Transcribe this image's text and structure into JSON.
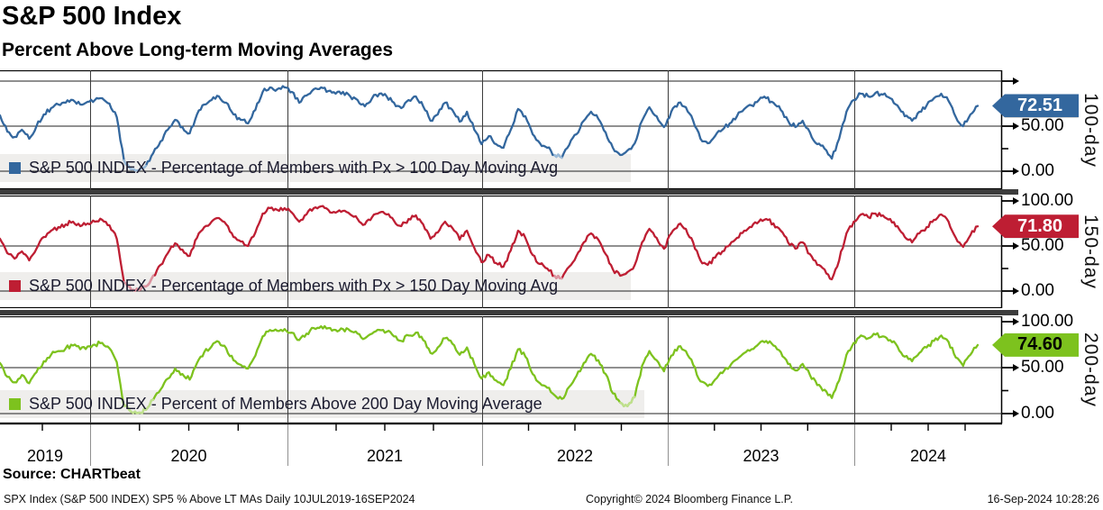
{
  "header": {
    "title": "S&P 500 Index",
    "subtitle": "Percent Above Long-term Moving Averages"
  },
  "source_label": "Source: CHARTbeat",
  "footer": {
    "left": "SPX Index (S&P 500 INDEX) SP5 % Above LT MAs  Daily 10JUL2019-16SEP2024",
    "center": "Copyright© 2024 Bloomberg Finance L.P.",
    "right": "16-Sep-2024 10:28:26"
  },
  "chart_data": {
    "type": "line",
    "x_axis": {
      "start": "10JUL2019",
      "end": "16SEP2024",
      "year_labels": [
        "2019",
        "2020",
        "2021",
        "2022",
        "2023",
        "2024"
      ],
      "sampling": "approx biweekly readings of daily series"
    },
    "ylim": [
      0,
      100
    ],
    "grid": "horizontal at 0/50/100, vertical at year starts",
    "legend_position": "bottom-left inside each panel",
    "panels": [
      {
        "id": "100-day",
        "legend": "S&P 500 INDEX - Percentage of Members with Px > 100 Day Moving Avg",
        "axis_title": "100-day",
        "last_value": 72.51,
        "last_label": "72.51",
        "color": "#33679E",
        "light_color": "#9BBBD9",
        "tag_text_color": "#FFFFFF",
        "ticks": [
          {
            "v": 100,
            "label": ""
          },
          {
            "v": 50,
            "label": "50.00"
          },
          {
            "v": 0,
            "label": "0.00"
          }
        ],
        "values": [
          62,
          44,
          38,
          46,
          36,
          50,
          63,
          70,
          74,
          76,
          79,
          74,
          77,
          79,
          81,
          75,
          60,
          12,
          2,
          1,
          6,
          20,
          33,
          46,
          57,
          49,
          42,
          63,
          74,
          79,
          83,
          76,
          63,
          57,
          53,
          68,
          88,
          93,
          91,
          93,
          88,
          76,
          84,
          91,
          93,
          89,
          86,
          88,
          83,
          79,
          72,
          81,
          86,
          83,
          76,
          70,
          79,
          83,
          72,
          56,
          63,
          76,
          68,
          55,
          66,
          46,
          30,
          39,
          30,
          26,
          46,
          69,
          61,
          41,
          31,
          26,
          18,
          15,
          29,
          41,
          56,
          66,
          58,
          43,
          26,
          18,
          23,
          31,
          56,
          71,
          61,
          49,
          66,
          76,
          71,
          56,
          36,
          31,
          39,
          46,
          53,
          61,
          69,
          73,
          79,
          81,
          76,
          68,
          56,
          49,
          56,
          43,
          30,
          25,
          14,
          36,
          66,
          79,
          86,
          83,
          87,
          85,
          81,
          73,
          61,
          56,
          66,
          73,
          81,
          86,
          78,
          60,
          50,
          63,
          72.51
        ]
      },
      {
        "id": "150-day",
        "legend": "S&P 500 INDEX - Percentage of Members with Px > 150 Day Moving Avg",
        "axis_title": "150-day",
        "last_value": 71.8,
        "last_label": "71.80",
        "color": "#BE1E33",
        "light_color": "#DC95A1",
        "tag_text_color": "#FFFFFF",
        "ticks": [
          {
            "v": 100,
            "label": "100.00"
          },
          {
            "v": 50,
            "label": "50.00"
          },
          {
            "v": 0,
            "label": "0.00"
          }
        ],
        "values": [
          58,
          42,
          36,
          44,
          34,
          47,
          60,
          67,
          71,
          74,
          77,
          72,
          75,
          77,
          79,
          73,
          58,
          10,
          1,
          1,
          5,
          17,
          29,
          42,
          53,
          46,
          39,
          59,
          71,
          77,
          81,
          74,
          60,
          55,
          50,
          65,
          86,
          92,
          90,
          92,
          87,
          77,
          85,
          92,
          94,
          90,
          87,
          89,
          85,
          80,
          74,
          82,
          87,
          85,
          78,
          72,
          80,
          84,
          74,
          58,
          65,
          77,
          70,
          57,
          67,
          48,
          32,
          40,
          31,
          27,
          45,
          67,
          59,
          40,
          30,
          25,
          17,
          14,
          27,
          39,
          54,
          64,
          57,
          41,
          24,
          17,
          21,
          29,
          54,
          69,
          59,
          47,
          64,
          74,
          69,
          54,
          34,
          29,
          37,
          44,
          51,
          59,
          67,
          71,
          77,
          80,
          75,
          67,
          54,
          47,
          54,
          41,
          29,
          24,
          13,
          34,
          64,
          77,
          85,
          82,
          86,
          84,
          80,
          72,
          60,
          54,
          64,
          71,
          79,
          85,
          77,
          59,
          49,
          62,
          71.8
        ]
      },
      {
        "id": "200-day",
        "legend": "S&P 500 INDEX - Percent of Members Above 200 Day Moving Average",
        "axis_title": "200-day",
        "last_value": 74.6,
        "last_label": "74.60",
        "color": "#7DC21E",
        "light_color": "#BFE08D",
        "tag_text_color": "#000000",
        "ticks": [
          {
            "v": 100,
            "label": "100.00"
          },
          {
            "v": 50,
            "label": "50.00"
          },
          {
            "v": 0,
            "label": "0.00"
          }
        ],
        "values": [
          55,
          40,
          34,
          42,
          33,
          45,
          57,
          64,
          68,
          71,
          74,
          70,
          73,
          75,
          77,
          71,
          56,
          8,
          2,
          1,
          4,
          15,
          26,
          38,
          49,
          43,
          37,
          55,
          67,
          73,
          78,
          71,
          58,
          53,
          49,
          63,
          84,
          91,
          90,
          92,
          88,
          80,
          87,
          93,
          95,
          93,
          91,
          92,
          90,
          87,
          82,
          87,
          91,
          89,
          84,
          79,
          85,
          88,
          80,
          66,
          72,
          82,
          76,
          64,
          72,
          54,
          38,
          45,
          36,
          31,
          49,
          70,
          62,
          43,
          33,
          28,
          20,
          16,
          29,
          41,
          55,
          65,
          58,
          43,
          22,
          12,
          8,
          18,
          52,
          68,
          58,
          46,
          63,
          73,
          68,
          53,
          35,
          30,
          37,
          44,
          51,
          59,
          66,
          70,
          76,
          79,
          74,
          67,
          54,
          47,
          54,
          42,
          31,
          26,
          17,
          36,
          64,
          77,
          85,
          82,
          86,
          84,
          80,
          73,
          62,
          57,
          66,
          72,
          79,
          85,
          78,
          61,
          52,
          64,
          74.6
        ]
      }
    ]
  }
}
